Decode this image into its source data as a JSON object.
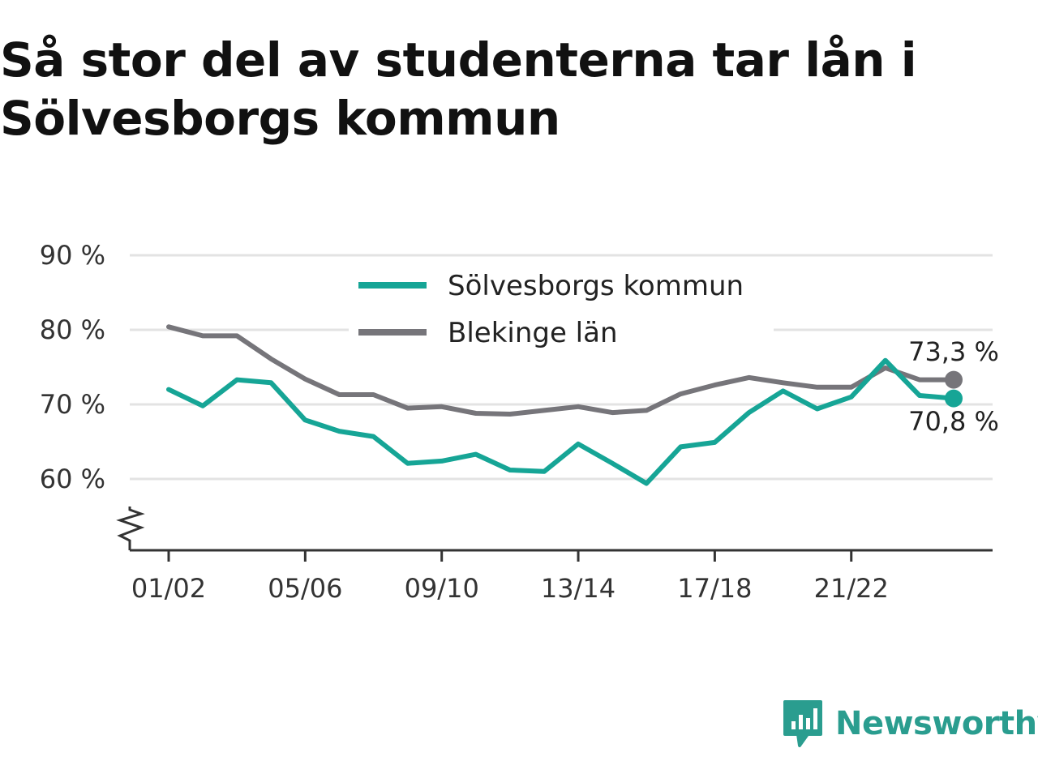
{
  "title": "Så stor del av studenterna tar lån i Sölvesborgs kommun",
  "brand": {
    "name": "Newsworthy",
    "color": "#2a9d8f",
    "icon": "newsworthy-logo-icon"
  },
  "colors": {
    "kommun": "#16a596",
    "lan": "#76757a",
    "grid": "#e3e3e3",
    "axis": "#333333"
  },
  "chart_data": {
    "type": "line",
    "title": "Så stor del av studenterna tar lån i Sölvesborgs kommun",
    "xlabel": "",
    "ylabel": "",
    "ylim": [
      50,
      90
    ],
    "y_ticks": [
      60,
      70,
      80,
      90
    ],
    "y_tick_labels": [
      "60 %",
      "70 %",
      "80 %",
      "90 %"
    ],
    "y_axis_break": true,
    "grid": true,
    "legend_position": "top-center",
    "x": [
      "01/02",
      "02/03",
      "03/04",
      "04/05",
      "05/06",
      "06/07",
      "07/08",
      "08/09",
      "09/10",
      "10/11",
      "11/12",
      "12/13",
      "13/14",
      "14/15",
      "15/16",
      "16/17",
      "17/18",
      "18/19",
      "19/20",
      "20/21",
      "21/22",
      "22/23",
      "23/24",
      "24/25"
    ],
    "x_tick_labels": [
      "01/02",
      "05/06",
      "09/10",
      "13/14",
      "17/18",
      "21/22"
    ],
    "series": [
      {
        "name": "Sölvesborgs kommun",
        "color": "#16a596",
        "values": [
          72.0,
          69.8,
          73.3,
          72.9,
          67.9,
          66.4,
          65.7,
          62.1,
          62.4,
          63.3,
          61.2,
          61.0,
          64.7,
          62.1,
          59.4,
          64.3,
          64.9,
          68.9,
          71.8,
          69.4,
          71.0,
          75.9,
          71.2,
          70.8
        ],
        "end_label": "70,8 %"
      },
      {
        "name": "Blekinge län",
        "color": "#76757a",
        "values": [
          80.4,
          79.2,
          79.2,
          76.1,
          73.4,
          71.3,
          71.3,
          69.5,
          69.7,
          68.8,
          68.7,
          69.2,
          69.7,
          68.9,
          69.2,
          71.4,
          72.6,
          73.6,
          72.9,
          72.3,
          72.3,
          74.9,
          73.3,
          73.3
        ],
        "end_label": "73,3 %"
      }
    ]
  }
}
